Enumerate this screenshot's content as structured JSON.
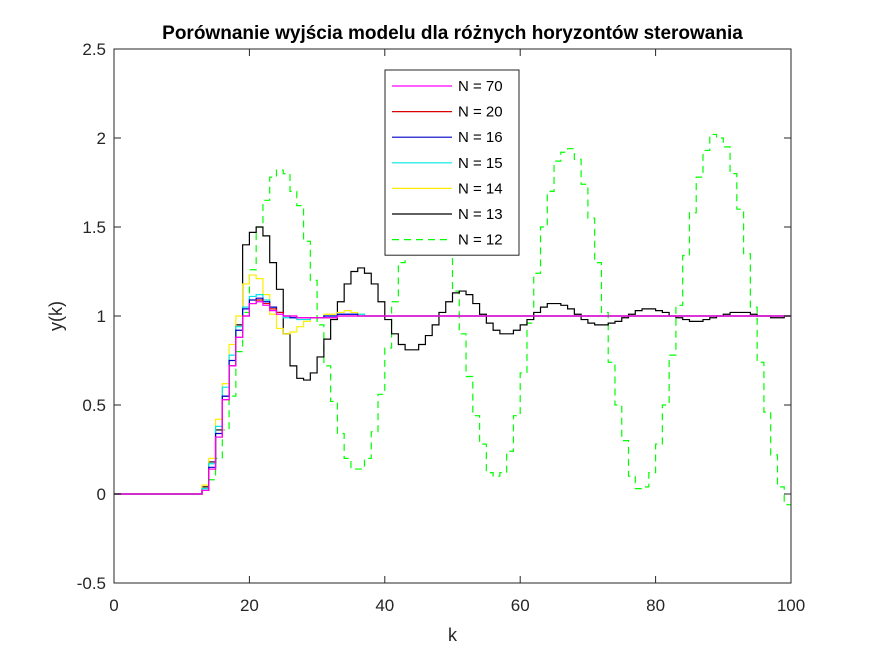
{
  "chart_data": {
    "type": "line",
    "step": true,
    "title": "Porównanie wyjścia modelu dla różnych horyzontów sterowania",
    "xlabel": "k",
    "ylabel": "y(k)",
    "xlim": [
      0,
      100
    ],
    "ylim": [
      -0.5,
      2.5
    ],
    "xticks": [
      0,
      20,
      40,
      60,
      80,
      100
    ],
    "yticks": [
      -0.5,
      0,
      0.5,
      1,
      1.5,
      2,
      2.5
    ],
    "xtick_labels": [
      "0",
      "20",
      "40",
      "60",
      "80",
      "100"
    ],
    "ytick_labels": [
      "-0.5",
      "0",
      "0.5",
      "1",
      "1.5",
      "2",
      "2.5"
    ],
    "grid": false,
    "legend_position": "top-center",
    "series": [
      {
        "name": "N = 70",
        "color": "#ff00ff",
        "dash": "solid",
        "points": [
          [
            0,
            0
          ],
          [
            12,
            0
          ],
          [
            13,
            0.02
          ],
          [
            14,
            0.14
          ],
          [
            15,
            0.32
          ],
          [
            16,
            0.53
          ],
          [
            17,
            0.72
          ],
          [
            18,
            0.88
          ],
          [
            19,
            1.0
          ],
          [
            20,
            1.07
          ],
          [
            21,
            1.08
          ],
          [
            22,
            1.06
          ],
          [
            23,
            1.03
          ],
          [
            24,
            1.01
          ],
          [
            25,
            1.0
          ],
          [
            27,
            0.99
          ],
          [
            30,
            0.99
          ],
          [
            33,
            1.0
          ],
          [
            100,
            1.0
          ]
        ]
      },
      {
        "name": "N = 20",
        "color": "#dd0000",
        "dash": "solid",
        "points": [
          [
            0,
            0
          ],
          [
            12,
            0
          ],
          [
            13,
            0.02
          ],
          [
            14,
            0.14
          ],
          [
            15,
            0.32
          ],
          [
            16,
            0.53
          ],
          [
            17,
            0.72
          ],
          [
            18,
            0.88
          ],
          [
            19,
            1.0
          ],
          [
            20,
            1.07
          ],
          [
            21,
            1.09
          ],
          [
            22,
            1.07
          ],
          [
            23,
            1.04
          ],
          [
            24,
            1.02
          ],
          [
            25,
            1.0
          ],
          [
            27,
            0.99
          ],
          [
            30,
            0.99
          ],
          [
            33,
            1.0
          ],
          [
            100,
            1.0
          ]
        ]
      },
      {
        "name": "N = 16",
        "color": "#0000cc",
        "dash": "solid",
        "points": [
          [
            0,
            0
          ],
          [
            12,
            0
          ],
          [
            13,
            0.02
          ],
          [
            14,
            0.15
          ],
          [
            15,
            0.34
          ],
          [
            16,
            0.55
          ],
          [
            17,
            0.75
          ],
          [
            18,
            0.92
          ],
          [
            19,
            1.04
          ],
          [
            20,
            1.09
          ],
          [
            21,
            1.1
          ],
          [
            22,
            1.08
          ],
          [
            23,
            1.05
          ],
          [
            24,
            1.02
          ],
          [
            25,
            1.0
          ],
          [
            26,
            0.99
          ],
          [
            29,
            0.99
          ],
          [
            31,
            1.0
          ],
          [
            33,
            1.01
          ],
          [
            36,
            1.0
          ],
          [
            100,
            1.0
          ]
        ]
      },
      {
        "name": "N = 15",
        "color": "#00e6e6",
        "dash": "solid",
        "points": [
          [
            0,
            0
          ],
          [
            12,
            0
          ],
          [
            13,
            0.03
          ],
          [
            14,
            0.17
          ],
          [
            15,
            0.38
          ],
          [
            16,
            0.6
          ],
          [
            17,
            0.78
          ],
          [
            18,
            0.94
          ],
          [
            19,
            1.05
          ],
          [
            20,
            1.11
          ],
          [
            21,
            1.12
          ],
          [
            22,
            1.09
          ],
          [
            23,
            1.05
          ],
          [
            24,
            1.02
          ],
          [
            25,
            0.99
          ],
          [
            27,
            0.98
          ],
          [
            29,
            0.99
          ],
          [
            31,
            1.0
          ],
          [
            33,
            1.01
          ],
          [
            35,
            1.01
          ],
          [
            37,
            1.0
          ],
          [
            100,
            1.0
          ]
        ]
      },
      {
        "name": "N = 14",
        "color": "#ffee00",
        "dash": "solid",
        "points": [
          [
            0,
            0
          ],
          [
            12,
            0
          ],
          [
            13,
            0.05
          ],
          [
            14,
            0.2
          ],
          [
            15,
            0.42
          ],
          [
            16,
            0.62
          ],
          [
            17,
            0.84
          ],
          [
            18,
            1.0
          ],
          [
            19,
            1.18
          ],
          [
            20,
            1.23
          ],
          [
            21,
            1.21
          ],
          [
            22,
            1.12
          ],
          [
            23,
            1.01
          ],
          [
            24,
            0.93
          ],
          [
            25,
            0.9
          ],
          [
            26,
            0.91
          ],
          [
            27,
            0.94
          ],
          [
            28,
            0.97
          ],
          [
            29,
            0.99
          ],
          [
            31,
            1.01
          ],
          [
            33,
            1.02
          ],
          [
            34,
            1.03
          ],
          [
            35,
            1.02
          ],
          [
            36,
            1.01
          ],
          [
            37,
            1.0
          ],
          [
            100,
            1.0
          ]
        ]
      },
      {
        "name": "N = 13",
        "color": "#000000",
        "dash": "solid",
        "points": [
          [
            0,
            0
          ],
          [
            12,
            0
          ],
          [
            13,
            0.04
          ],
          [
            14,
            0.18
          ],
          [
            15,
            0.36
          ],
          [
            16,
            0.55
          ],
          [
            17,
            0.72
          ],
          [
            18,
            0.95
          ],
          [
            19,
            1.4
          ],
          [
            20,
            1.47
          ],
          [
            21,
            1.5
          ],
          [
            22,
            1.45
          ],
          [
            23,
            1.3
          ],
          [
            24,
            1.15
          ],
          [
            25,
            0.9
          ],
          [
            26,
            0.72
          ],
          [
            27,
            0.65
          ],
          [
            28,
            0.64
          ],
          [
            29,
            0.68
          ],
          [
            30,
            0.77
          ],
          [
            31,
            0.87
          ],
          [
            32,
            0.98
          ],
          [
            33,
            1.08
          ],
          [
            34,
            1.18
          ],
          [
            35,
            1.25
          ],
          [
            36,
            1.27
          ],
          [
            37,
            1.24
          ],
          [
            38,
            1.18
          ],
          [
            39,
            1.08
          ],
          [
            40,
            0.98
          ],
          [
            41,
            0.9
          ],
          [
            42,
            0.84
          ],
          [
            43,
            0.81
          ],
          [
            44,
            0.81
          ],
          [
            45,
            0.84
          ],
          [
            46,
            0.89
          ],
          [
            47,
            0.95
          ],
          [
            48,
            1.02
          ],
          [
            49,
            1.08
          ],
          [
            50,
            1.13
          ],
          [
            51,
            1.14
          ],
          [
            52,
            1.12
          ],
          [
            53,
            1.07
          ],
          [
            54,
            1.01
          ],
          [
            55,
            0.96
          ],
          [
            56,
            0.92
          ],
          [
            57,
            0.9
          ],
          [
            58,
            0.9
          ],
          [
            59,
            0.92
          ],
          [
            60,
            0.95
          ],
          [
            61,
            0.98
          ],
          [
            62,
            1.02
          ],
          [
            63,
            1.05
          ],
          [
            64,
            1.07
          ],
          [
            65,
            1.07
          ],
          [
            66,
            1.06
          ],
          [
            67,
            1.04
          ],
          [
            68,
            1.01
          ],
          [
            69,
            0.98
          ],
          [
            70,
            0.96
          ],
          [
            71,
            0.95
          ],
          [
            72,
            0.95
          ],
          [
            73,
            0.96
          ],
          [
            74,
            0.97
          ],
          [
            75,
            0.99
          ],
          [
            76,
            1.01
          ],
          [
            77,
            1.03
          ],
          [
            78,
            1.04
          ],
          [
            79,
            1.04
          ],
          [
            80,
            1.03
          ],
          [
            81,
            1.02
          ],
          [
            82,
            1.0
          ],
          [
            83,
            0.99
          ],
          [
            84,
            0.98
          ],
          [
            85,
            0.97
          ],
          [
            86,
            0.97
          ],
          [
            87,
            0.98
          ],
          [
            88,
            0.99
          ],
          [
            89,
            1.0
          ],
          [
            90,
            1.01
          ],
          [
            91,
            1.02
          ],
          [
            92,
            1.02
          ],
          [
            93,
            1.02
          ],
          [
            94,
            1.01
          ],
          [
            95,
            1.0
          ],
          [
            96,
            1.0
          ],
          [
            97,
            0.99
          ],
          [
            98,
            0.99
          ],
          [
            99,
            1.0
          ],
          [
            100,
            1.0
          ]
        ]
      },
      {
        "name": "N = 12",
        "color": "#00ff00",
        "dash": "dashed",
        "points": [
          [
            0,
            0
          ],
          [
            12,
            0
          ],
          [
            13,
            0.02
          ],
          [
            14,
            0.08
          ],
          [
            15,
            0.2
          ],
          [
            16,
            0.36
          ],
          [
            17,
            0.55
          ],
          [
            18,
            0.8
          ],
          [
            19,
            1.02
          ],
          [
            20,
            1.26
          ],
          [
            21,
            1.5
          ],
          [
            22,
            1.65
          ],
          [
            23,
            1.78
          ],
          [
            24,
            1.82
          ],
          [
            25,
            1.8
          ],
          [
            26,
            1.7
          ],
          [
            27,
            1.62
          ],
          [
            28,
            1.42
          ],
          [
            29,
            1.2
          ],
          [
            30,
            0.95
          ],
          [
            31,
            0.72
          ],
          [
            32,
            0.52
          ],
          [
            33,
            0.34
          ],
          [
            34,
            0.2
          ],
          [
            35,
            0.14
          ],
          [
            36,
            0.14
          ],
          [
            37,
            0.2
          ],
          [
            38,
            0.35
          ],
          [
            39,
            0.56
          ],
          [
            40,
            0.82
          ],
          [
            41,
            1.08
          ],
          [
            42,
            1.3
          ],
          [
            43,
            1.5
          ],
          [
            44,
            1.64
          ],
          [
            45,
            1.73
          ],
          [
            46,
            1.74
          ],
          [
            47,
            1.7
          ],
          [
            48,
            1.56
          ],
          [
            49,
            1.38
          ],
          [
            50,
            1.14
          ],
          [
            51,
            0.9
          ],
          [
            52,
            0.66
          ],
          [
            53,
            0.44
          ],
          [
            54,
            0.28
          ],
          [
            55,
            0.12
          ],
          [
            56,
            0.1
          ],
          [
            57,
            0.12
          ],
          [
            58,
            0.24
          ],
          [
            59,
            0.44
          ],
          [
            60,
            0.68
          ],
          [
            61,
            0.96
          ],
          [
            62,
            1.24
          ],
          [
            63,
            1.5
          ],
          [
            64,
            1.7
          ],
          [
            65,
            1.87
          ],
          [
            66,
            1.92
          ],
          [
            67,
            1.94
          ],
          [
            68,
            1.88
          ],
          [
            69,
            1.74
          ],
          [
            70,
            1.55
          ],
          [
            71,
            1.3
          ],
          [
            72,
            1.02
          ],
          [
            73,
            0.74
          ],
          [
            74,
            0.5
          ],
          [
            75,
            0.3
          ],
          [
            76,
            0.1
          ],
          [
            77,
            0.03
          ],
          [
            78,
            0.04
          ],
          [
            79,
            0.12
          ],
          [
            80,
            0.28
          ],
          [
            81,
            0.5
          ],
          [
            82,
            0.78
          ],
          [
            83,
            1.06
          ],
          [
            84,
            1.34
          ],
          [
            85,
            1.58
          ],
          [
            86,
            1.78
          ],
          [
            87,
            1.93
          ],
          [
            88,
            2.02
          ],
          [
            89,
            2.0
          ],
          [
            90,
            1.95
          ],
          [
            91,
            1.8
          ],
          [
            92,
            1.6
          ],
          [
            93,
            1.35
          ],
          [
            94,
            1.05
          ],
          [
            95,
            0.74
          ],
          [
            96,
            0.46
          ],
          [
            97,
            0.22
          ],
          [
            98,
            0.04
          ],
          [
            99,
            -0.06
          ],
          [
            100,
            -0.06
          ]
        ]
      }
    ]
  }
}
